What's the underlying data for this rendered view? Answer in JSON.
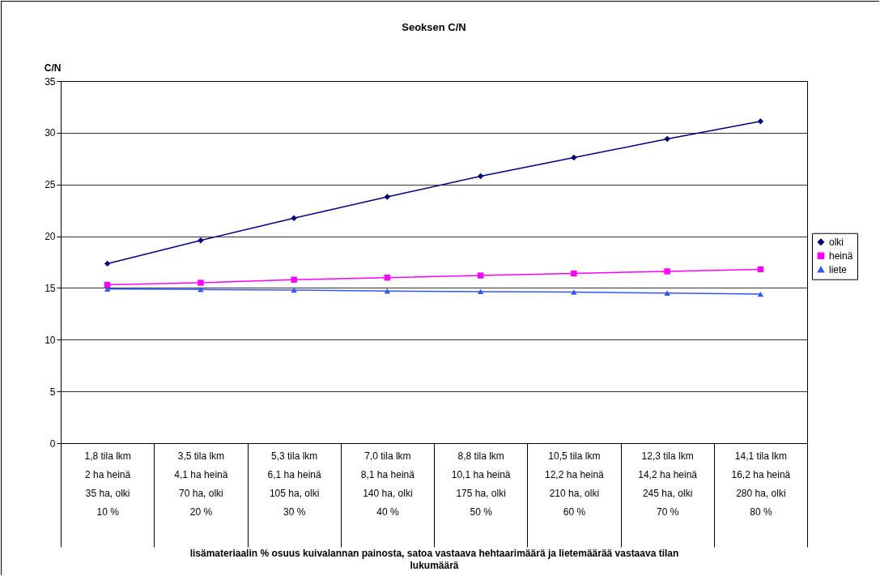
{
  "chart_data": {
    "type": "line",
    "title": "Seoksen C/N",
    "ylabel": "C/N",
    "xlabel": "lisämateriaalin % osuus kuivalannan painosta, satoa vastaava hehtaarimäärä ja lietemäärää vastaava tilan lukumäärä",
    "categories": [
      "1,8 tila lkm\n2 ha heinä\n35 ha, olki\n10 %",
      "3,5 tila lkm\n4,1 ha heinä\n70 ha, olki\n20 %",
      "5,3 tila lkm\n6,1 ha heinä\n105 ha, olki\n30 %",
      "7,0 tila lkm\n8,1 ha heinä\n140 ha, olki\n40 %",
      "8,8 tila lkm\n10,1 ha heinä\n175 ha, olki\n50 %",
      "10,5 tila lkm\n12,2 ha heinä\n210 ha, olki\n60 %",
      "12,3 tila lkm\n14,2 ha heinä\n245 ha, olki\n70 %",
      "14,1 tila lkm\n16,2 ha heinä\n280 ha, olki\n80 %"
    ],
    "series": [
      {
        "name": "olki",
        "color": "#000080",
        "marker": "diamond",
        "values": [
          17.35,
          19.6,
          21.75,
          23.8,
          25.8,
          27.6,
          29.4,
          31.1
        ]
      },
      {
        "name": "heinä",
        "color": "#ff00ff",
        "marker": "square",
        "values": [
          15.3,
          15.5,
          15.8,
          16.0,
          16.2,
          16.4,
          16.6,
          16.8
        ]
      },
      {
        "name": "liete",
        "color": "#3355ff",
        "marker": "triangle",
        "values": [
          14.9,
          14.85,
          14.8,
          14.7,
          14.65,
          14.6,
          14.5,
          14.4
        ]
      }
    ],
    "ylim": [
      0,
      35
    ],
    "yticks": [
      0,
      5,
      10,
      15,
      20,
      25,
      30,
      35
    ],
    "grid": "y",
    "legend": "right",
    "line_style": "solid"
  }
}
